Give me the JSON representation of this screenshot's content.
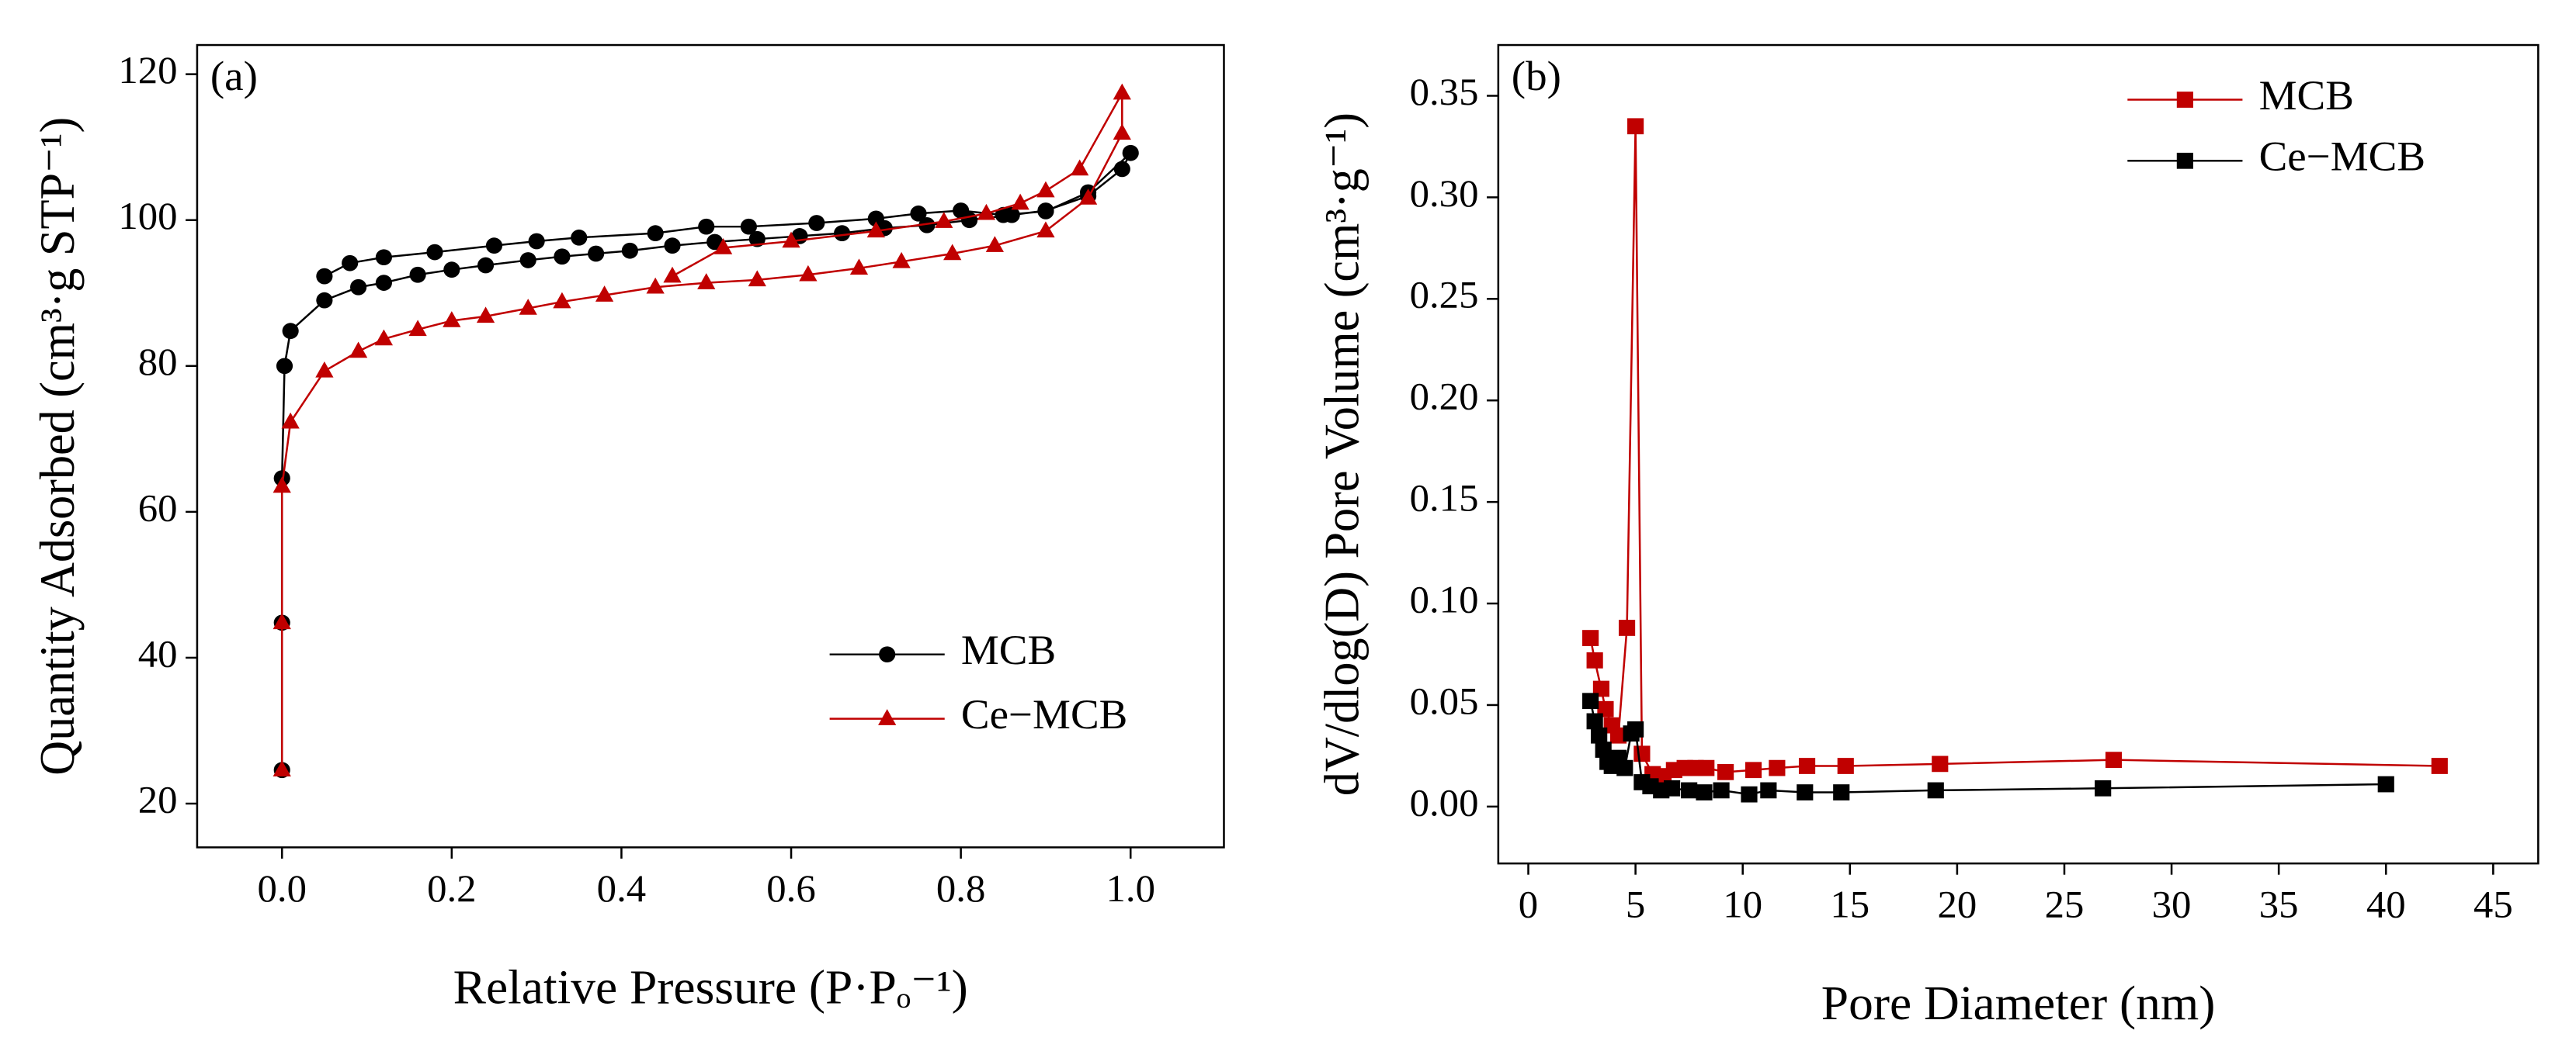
{
  "chart_data": [
    {
      "type": "line",
      "annotation": "(a)",
      "x_label": "Relative Pressure (P·Pₒ⁻¹)",
      "y_label": "Quantity Adsorbed (cm³·g STP⁻¹)",
      "xlim": [
        -0.1,
        1.11
      ],
      "ylim": [
        14,
        124
      ],
      "xticks": [
        {
          "value": 0,
          "label": "0.0"
        },
        {
          "value": 0.2,
          "label": "0.2"
        },
        {
          "value": 0.4,
          "label": "0.4"
        },
        {
          "value": 0.6,
          "label": "0.6"
        },
        {
          "value": 0.8,
          "label": "0.8"
        },
        {
          "value": 1,
          "label": "1.0"
        }
      ],
      "yticks": [
        20,
        40,
        60,
        80,
        100,
        120
      ],
      "legend": "lower right",
      "series": [
        {
          "name": "MCB",
          "color": "#000000",
          "marker": "circle",
          "x": [
            0,
            0,
            0,
            0.003,
            0.01,
            0.05,
            0.09,
            0.12,
            0.16,
            0.2,
            0.24,
            0.29,
            0.33,
            0.37,
            0.41,
            0.46,
            0.51,
            0.56,
            0.61,
            0.66,
            0.71,
            0.76,
            0.81,
            0.86,
            0.9,
            0.95,
            0.99,
            1,
            0.95,
            0.9,
            0.85,
            0.8,
            0.75,
            0.7,
            0.63,
            0.55,
            0.5,
            0.44,
            0.35,
            0.3,
            0.25,
            0.18,
            0.12,
            0.08,
            0.05
          ],
          "values": [
            24.6,
            44.8,
            64.6,
            80,
            84.8,
            89,
            90.8,
            91.4,
            92.5,
            93.2,
            93.8,
            94.5,
            95,
            95.4,
            95.8,
            96.5,
            97,
            97.4,
            97.8,
            98.2,
            98.9,
            99.3,
            100,
            100.7,
            101.3,
            103.3,
            107,
            109.2,
            103.8,
            101.2,
            100.7,
            101.3,
            100.9,
            100.2,
            99.6,
            99.1,
            99.1,
            98.2,
            97.6,
            97.1,
            96.5,
            95.6,
            94.9,
            94.1,
            92.3
          ]
        },
        {
          "name": "Ce−MCB",
          "color": "#c00000",
          "marker": "triangle",
          "x": [
            0,
            0,
            0,
            0.01,
            0.05,
            0.09,
            0.12,
            0.16,
            0.2,
            0.24,
            0.29,
            0.33,
            0.38,
            0.44,
            0.5,
            0.56,
            0.62,
            0.68,
            0.73,
            0.79,
            0.84,
            0.9,
            0.95,
            0.99,
            0.99,
            0.94,
            0.9,
            0.87,
            0.83,
            0.78,
            0.7,
            0.6,
            0.52,
            0.46
          ],
          "values": [
            24.6,
            44.8,
            63.5,
            72.3,
            79.3,
            82,
            83.7,
            85,
            86.2,
            86.8,
            87.9,
            88.8,
            89.7,
            90.8,
            91.4,
            91.8,
            92.5,
            93.4,
            94.3,
            95.4,
            96.5,
            98.5,
            103,
            111.9,
            117.4,
            107,
            104,
            102.3,
            100.9,
            99.8,
            98.5,
            97.1,
            96.2,
            92.3
          ]
        }
      ]
    },
    {
      "type": "line",
      "annotation": "(b)",
      "x_label": "Pore Diameter (nm)",
      "y_label": "dV/dlog(D) Pore Volume (cm³·g⁻¹)",
      "xlim": [
        -1.4,
        47.1
      ],
      "ylim": [
        -0.028,
        0.375
      ],
      "xticks": [
        0,
        5,
        10,
        15,
        20,
        25,
        30,
        35,
        40,
        45
      ],
      "yticks": [
        {
          "value": 0,
          "label": "0.00"
        },
        {
          "value": 0.05,
          "label": "0.05"
        },
        {
          "value": 0.1,
          "label": "0.10"
        },
        {
          "value": 0.15,
          "label": "0.15"
        },
        {
          "value": 0.2,
          "label": "0.20"
        },
        {
          "value": 0.25,
          "label": "0.25"
        },
        {
          "value": 0.3,
          "label": "0.30"
        },
        {
          "value": 0.35,
          "label": "0.35"
        }
      ],
      "legend": "upper right",
      "series": [
        {
          "name": "MCB",
          "color": "#c00000",
          "marker": "square",
          "x": [
            2.9,
            3.1,
            3.4,
            3.6,
            3.9,
            4.2,
            4.6,
            5.0,
            5.3,
            5.8,
            6.3,
            6.8,
            7.3,
            7.8,
            8.3,
            9.2,
            10.5,
            11.6,
            13.0,
            14.8,
            19.2,
            27.3,
            42.5
          ],
          "values": [
            0.083,
            0.072,
            0.058,
            0.048,
            0.04,
            0.035,
            0.088,
            0.335,
            0.026,
            0.016,
            0.015,
            0.018,
            0.019,
            0.019,
            0.019,
            0.017,
            0.018,
            0.019,
            0.02,
            0.02,
            0.021,
            0.023,
            0.02
          ]
        },
        {
          "name": "Ce−MCB",
          "color": "#000000",
          "marker": "square",
          "x": [
            2.9,
            3.1,
            3.3,
            3.5,
            3.7,
            3.9,
            4.2,
            4.5,
            4.8,
            5.0,
            5.3,
            5.7,
            6.2,
            6.7,
            7.5,
            8.2,
            9.0,
            10.3,
            11.2,
            12.9,
            14.6,
            19.0,
            26.8,
            40.0
          ],
          "values": [
            0.052,
            0.042,
            0.035,
            0.028,
            0.022,
            0.02,
            0.024,
            0.019,
            0.036,
            0.038,
            0.012,
            0.01,
            0.008,
            0.009,
            0.008,
            0.007,
            0.008,
            0.006,
            0.008,
            0.007,
            0.007,
            0.008,
            0.009,
            0.011
          ]
        }
      ]
    }
  ]
}
